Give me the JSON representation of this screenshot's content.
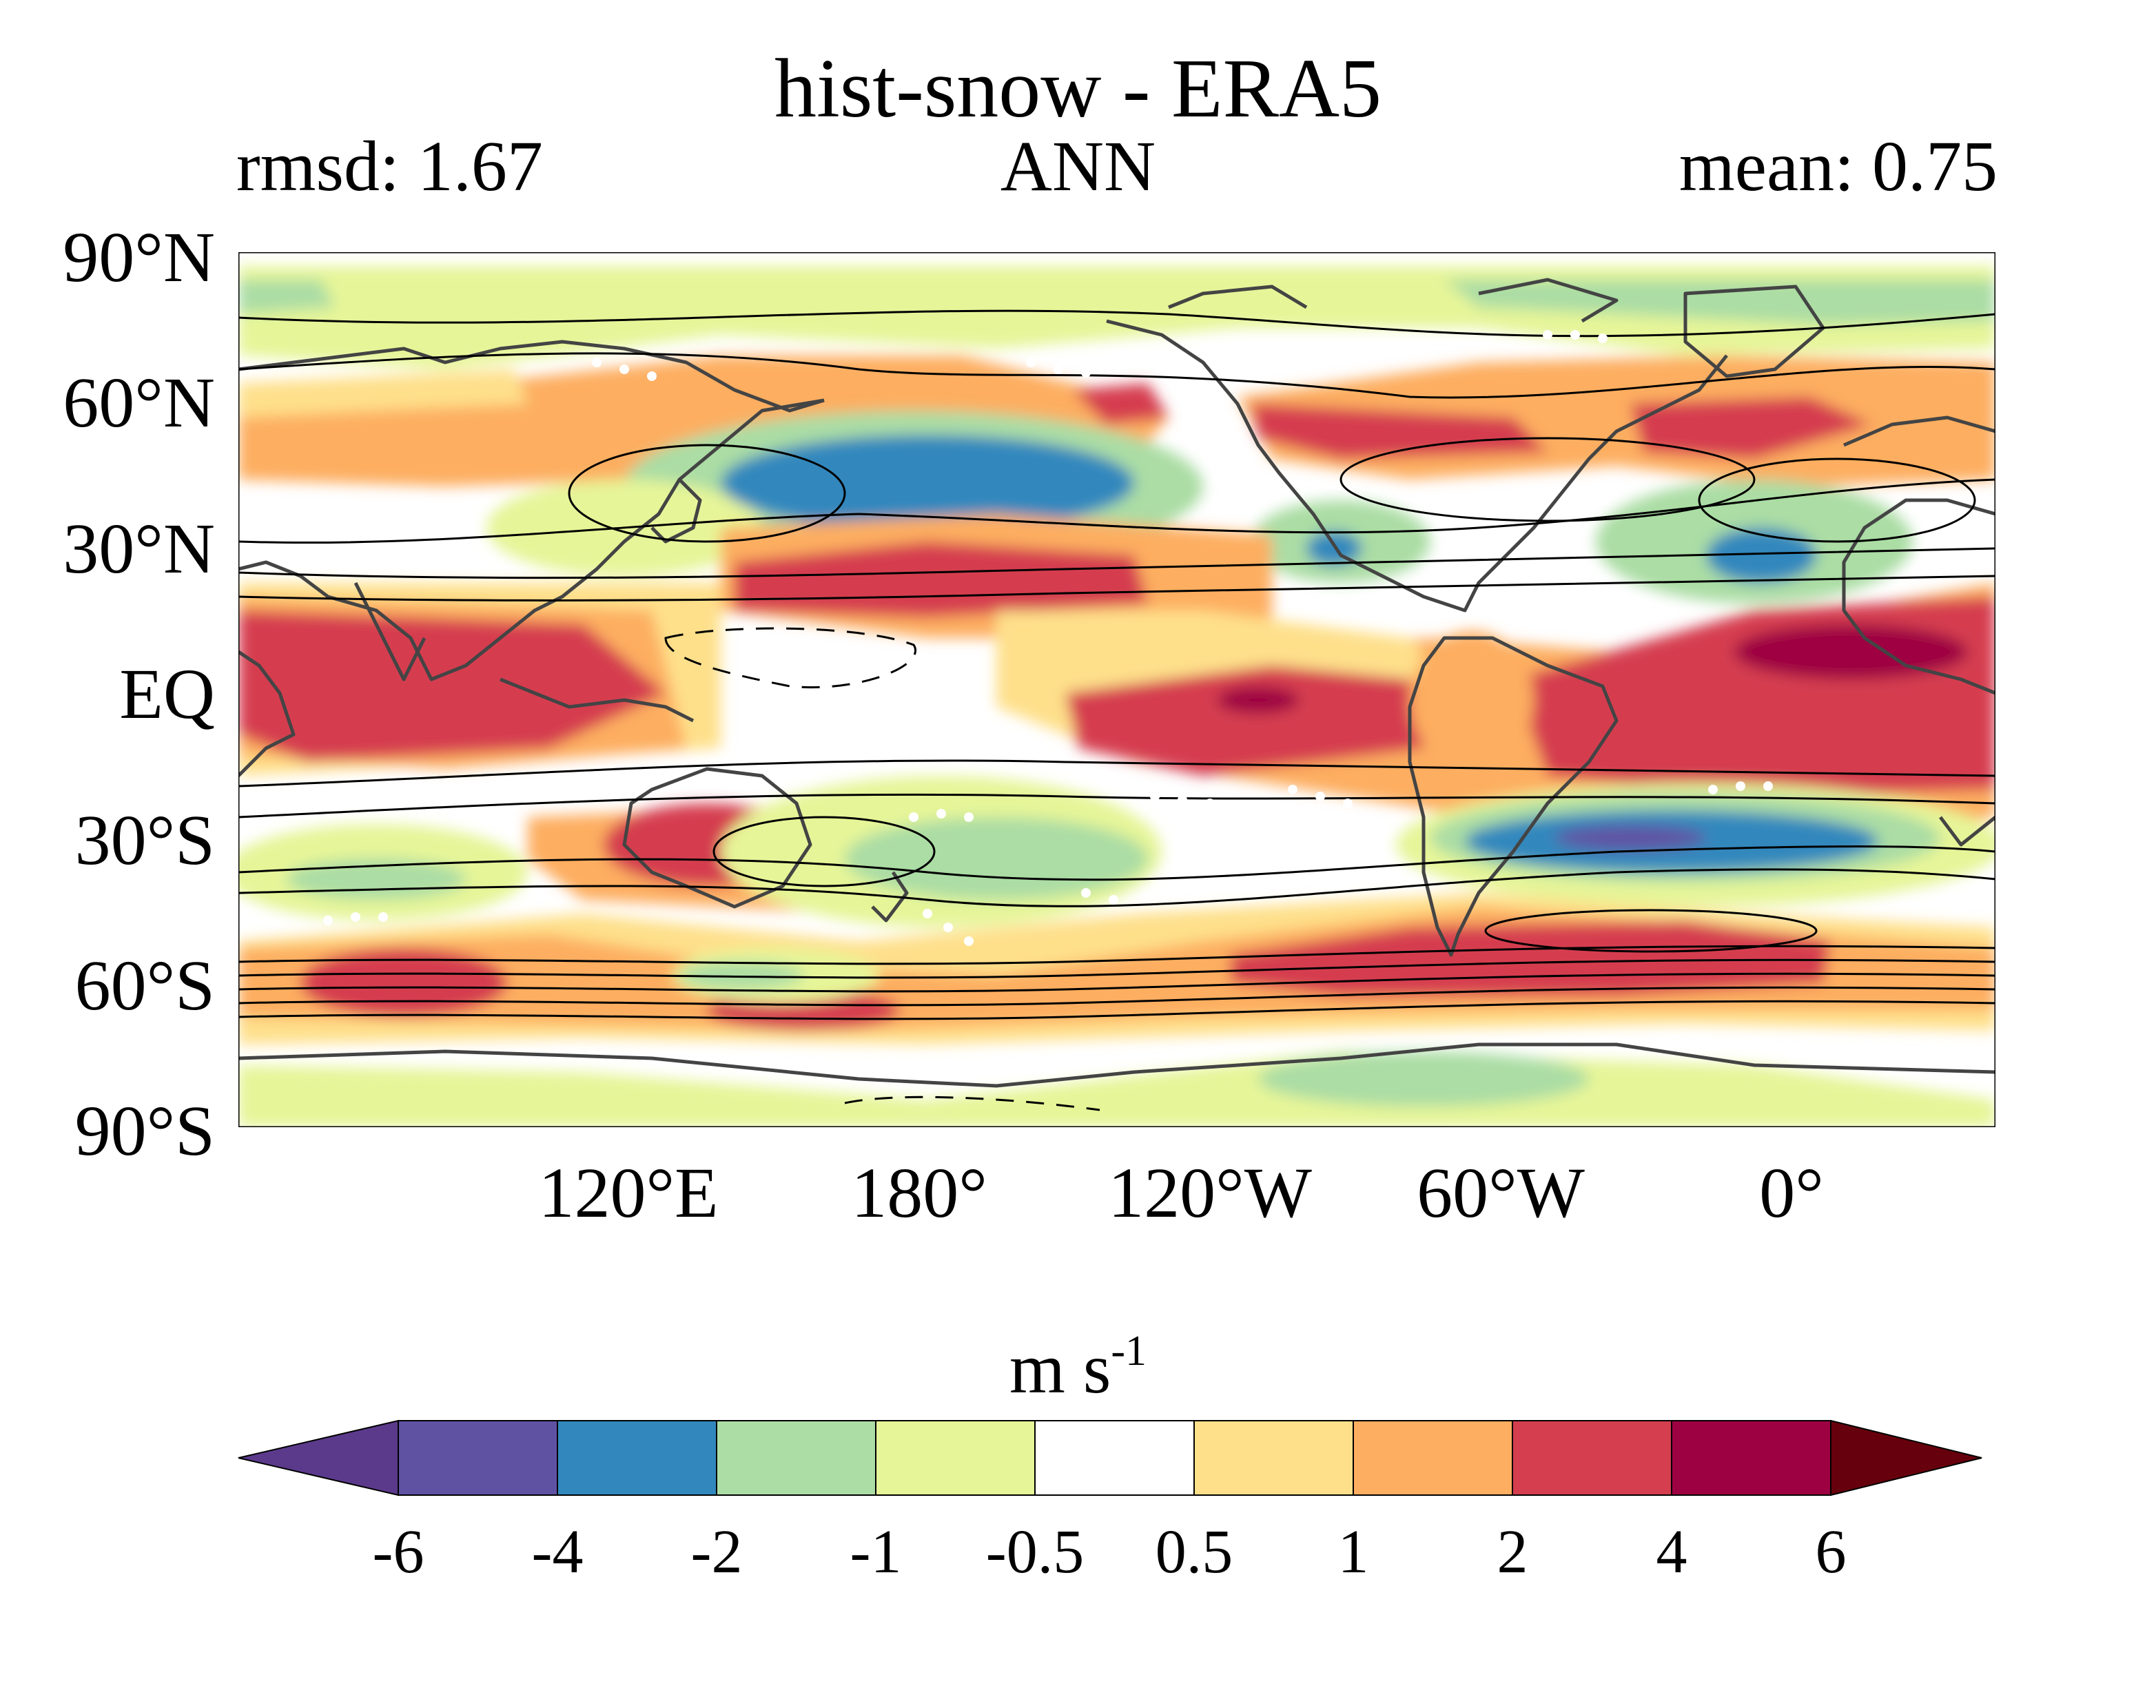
{
  "title": "hist-snow - ERA5",
  "rmsd_label": "rmsd: 1.67",
  "season": "ANN",
  "mean_label": "mean: 0.75",
  "lat_labels": [
    "90°N",
    "60°N",
    "30°N",
    "EQ",
    "30°S",
    "60°S",
    "90°S"
  ],
  "lon_labels": [
    "120°E",
    "180°",
    "120°W",
    "60°W",
    "0°"
  ],
  "colorbar": {
    "units": "m s",
    "units_exponent": "-1",
    "tick_labels": [
      "-6",
      "-4",
      "-2",
      "-1",
      "-0.5",
      "0.5",
      "1",
      "2",
      "4",
      "6"
    ],
    "colors": [
      "#5b3a8c",
      "#6052a3",
      "#3288bd",
      "#abdda4",
      "#e6f598",
      "#ffffff",
      "#fee08b",
      "#fdae61",
      "#d53e4f",
      "#9e0142",
      "#67000d"
    ]
  },
  "map_colors": {
    "ocean": "#ffffff",
    "coast": "#444444",
    "contour": "#000000",
    "stipple": "#ffffff"
  }
}
